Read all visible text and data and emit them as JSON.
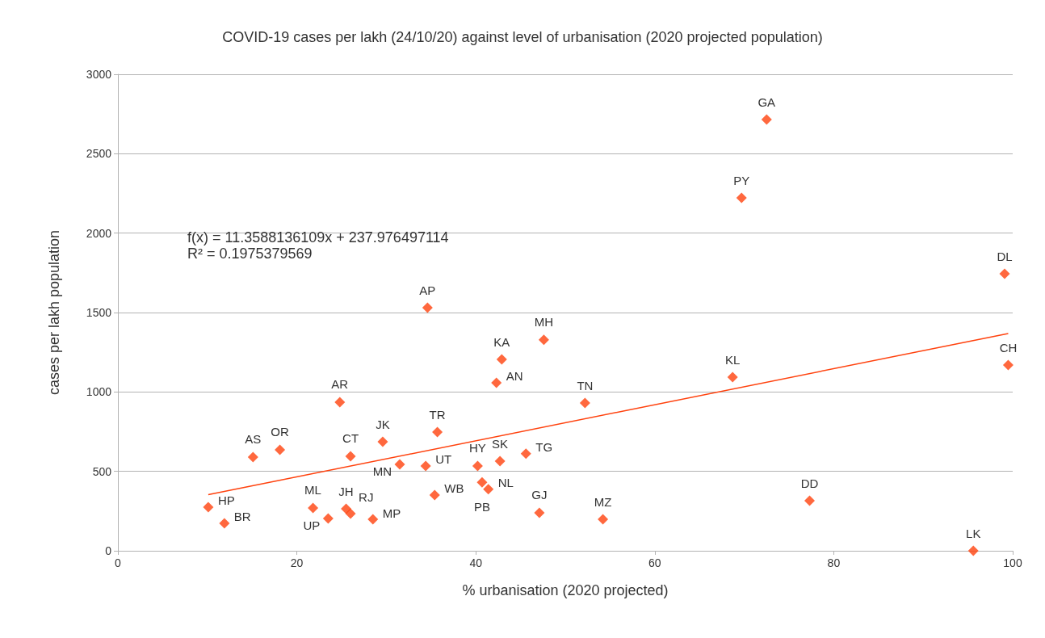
{
  "chart_data": {
    "type": "scatter",
    "title": "COVID-19 cases per lakh (24/10/20) against level of urbanisation (2020 projected population)",
    "xlabel": "% urbanisation (2020 projected)",
    "ylabel": "cases per lakh population",
    "xlim": [
      0,
      100
    ],
    "xticks": [
      0,
      20,
      40,
      60,
      80,
      100
    ],
    "ylim": [
      0,
      3000
    ],
    "yticks": [
      0,
      500,
      1000,
      1500,
      2000,
      2500,
      3000
    ],
    "grid": "y",
    "marker": "diamond",
    "series": [
      {
        "color": "#ff420e",
        "x": [
          10.1,
          11.9,
          15.1,
          18.1,
          21.8,
          23.5,
          26.0,
          24.8,
          25.5,
          26.0,
          28.5,
          29.6,
          31.5,
          34.4,
          34.6,
          35.4,
          35.7,
          40.2,
          40.7,
          41.4,
          42.7,
          45.6,
          47.1,
          42.3,
          42.9,
          47.6,
          52.2,
          54.2,
          68.7,
          72.5,
          69.7,
          77.3,
          95.6,
          99.1,
          99.5
        ],
        "values": [
          275,
          173,
          590,
          636,
          270,
          203,
          595,
          936,
          264,
          234,
          198,
          686,
          544,
          534,
          1530,
          351,
          747,
          534,
          431,
          388,
          564,
          612,
          239,
          1058,
          1205,
          1329,
          930,
          198,
          1093,
          2715,
          2222,
          315,
          0,
          1744,
          1169
        ]
      },
      {
        "type": "line",
        "color": "#ff420e",
        "marker": "none",
        "line_style": "solid",
        "x": [
          10.1,
          99.5
        ],
        "values": [
          353,
          1368
        ]
      }
    ],
    "annotations": [
      "f(x) = 11.3588136109x + 237.976497114",
      "R² = 0.1975379569",
      {
        "text": "HP",
        "x": 10.1,
        "y": 275
      },
      {
        "text": "BR",
        "x": 11.9,
        "y": 173
      },
      {
        "text": "AS",
        "x": 15.1,
        "y": 590
      },
      {
        "text": "OR",
        "x": 18.1,
        "y": 636
      },
      {
        "text": "ML",
        "x": 21.8,
        "y": 270
      },
      {
        "text": "UP",
        "x": 23.5,
        "y": 203
      },
      {
        "text": "CT",
        "x": 26.0,
        "y": 595
      },
      {
        "text": "AR",
        "x": 24.8,
        "y": 936
      },
      {
        "text": "JH",
        "x": 25.5,
        "y": 264
      },
      {
        "text": "RJ",
        "x": 26.0,
        "y": 234
      },
      {
        "text": "MP",
        "x": 28.5,
        "y": 198
      },
      {
        "text": "JK",
        "x": 29.6,
        "y": 686
      },
      {
        "text": "MN",
        "x": 31.5,
        "y": 544
      },
      {
        "text": "UT",
        "x": 34.4,
        "y": 534
      },
      {
        "text": "AP",
        "x": 34.6,
        "y": 1530
      },
      {
        "text": "WB",
        "x": 35.4,
        "y": 351
      },
      {
        "text": "TR",
        "x": 35.7,
        "y": 747
      },
      {
        "text": "HY",
        "x": 40.2,
        "y": 534
      },
      {
        "text": "PB",
        "x": 40.7,
        "y": 431
      },
      {
        "text": "NL",
        "x": 41.4,
        "y": 388
      },
      {
        "text": "SK",
        "x": 42.7,
        "y": 564
      },
      {
        "text": "TG",
        "x": 45.6,
        "y": 612
      },
      {
        "text": "GJ",
        "x": 47.1,
        "y": 239
      },
      {
        "text": "AN",
        "x": 42.3,
        "y": 1058
      },
      {
        "text": "KA",
        "x": 42.9,
        "y": 1205
      },
      {
        "text": "MH",
        "x": 47.6,
        "y": 1329
      },
      {
        "text": "TN",
        "x": 52.2,
        "y": 930
      },
      {
        "text": "MZ",
        "x": 54.2,
        "y": 198
      },
      {
        "text": "KL",
        "x": 68.7,
        "y": 1093
      },
      {
        "text": "GA",
        "x": 72.5,
        "y": 2715
      },
      {
        "text": "PY",
        "x": 69.7,
        "y": 2222
      },
      {
        "text": "DD",
        "x": 77.3,
        "y": 315
      },
      {
        "text": "LK",
        "x": 95.6,
        "y": 0
      },
      {
        "text": "DL",
        "x": 99.1,
        "y": 1744
      },
      {
        "text": "CH",
        "x": 99.5,
        "y": 1169
      }
    ]
  }
}
